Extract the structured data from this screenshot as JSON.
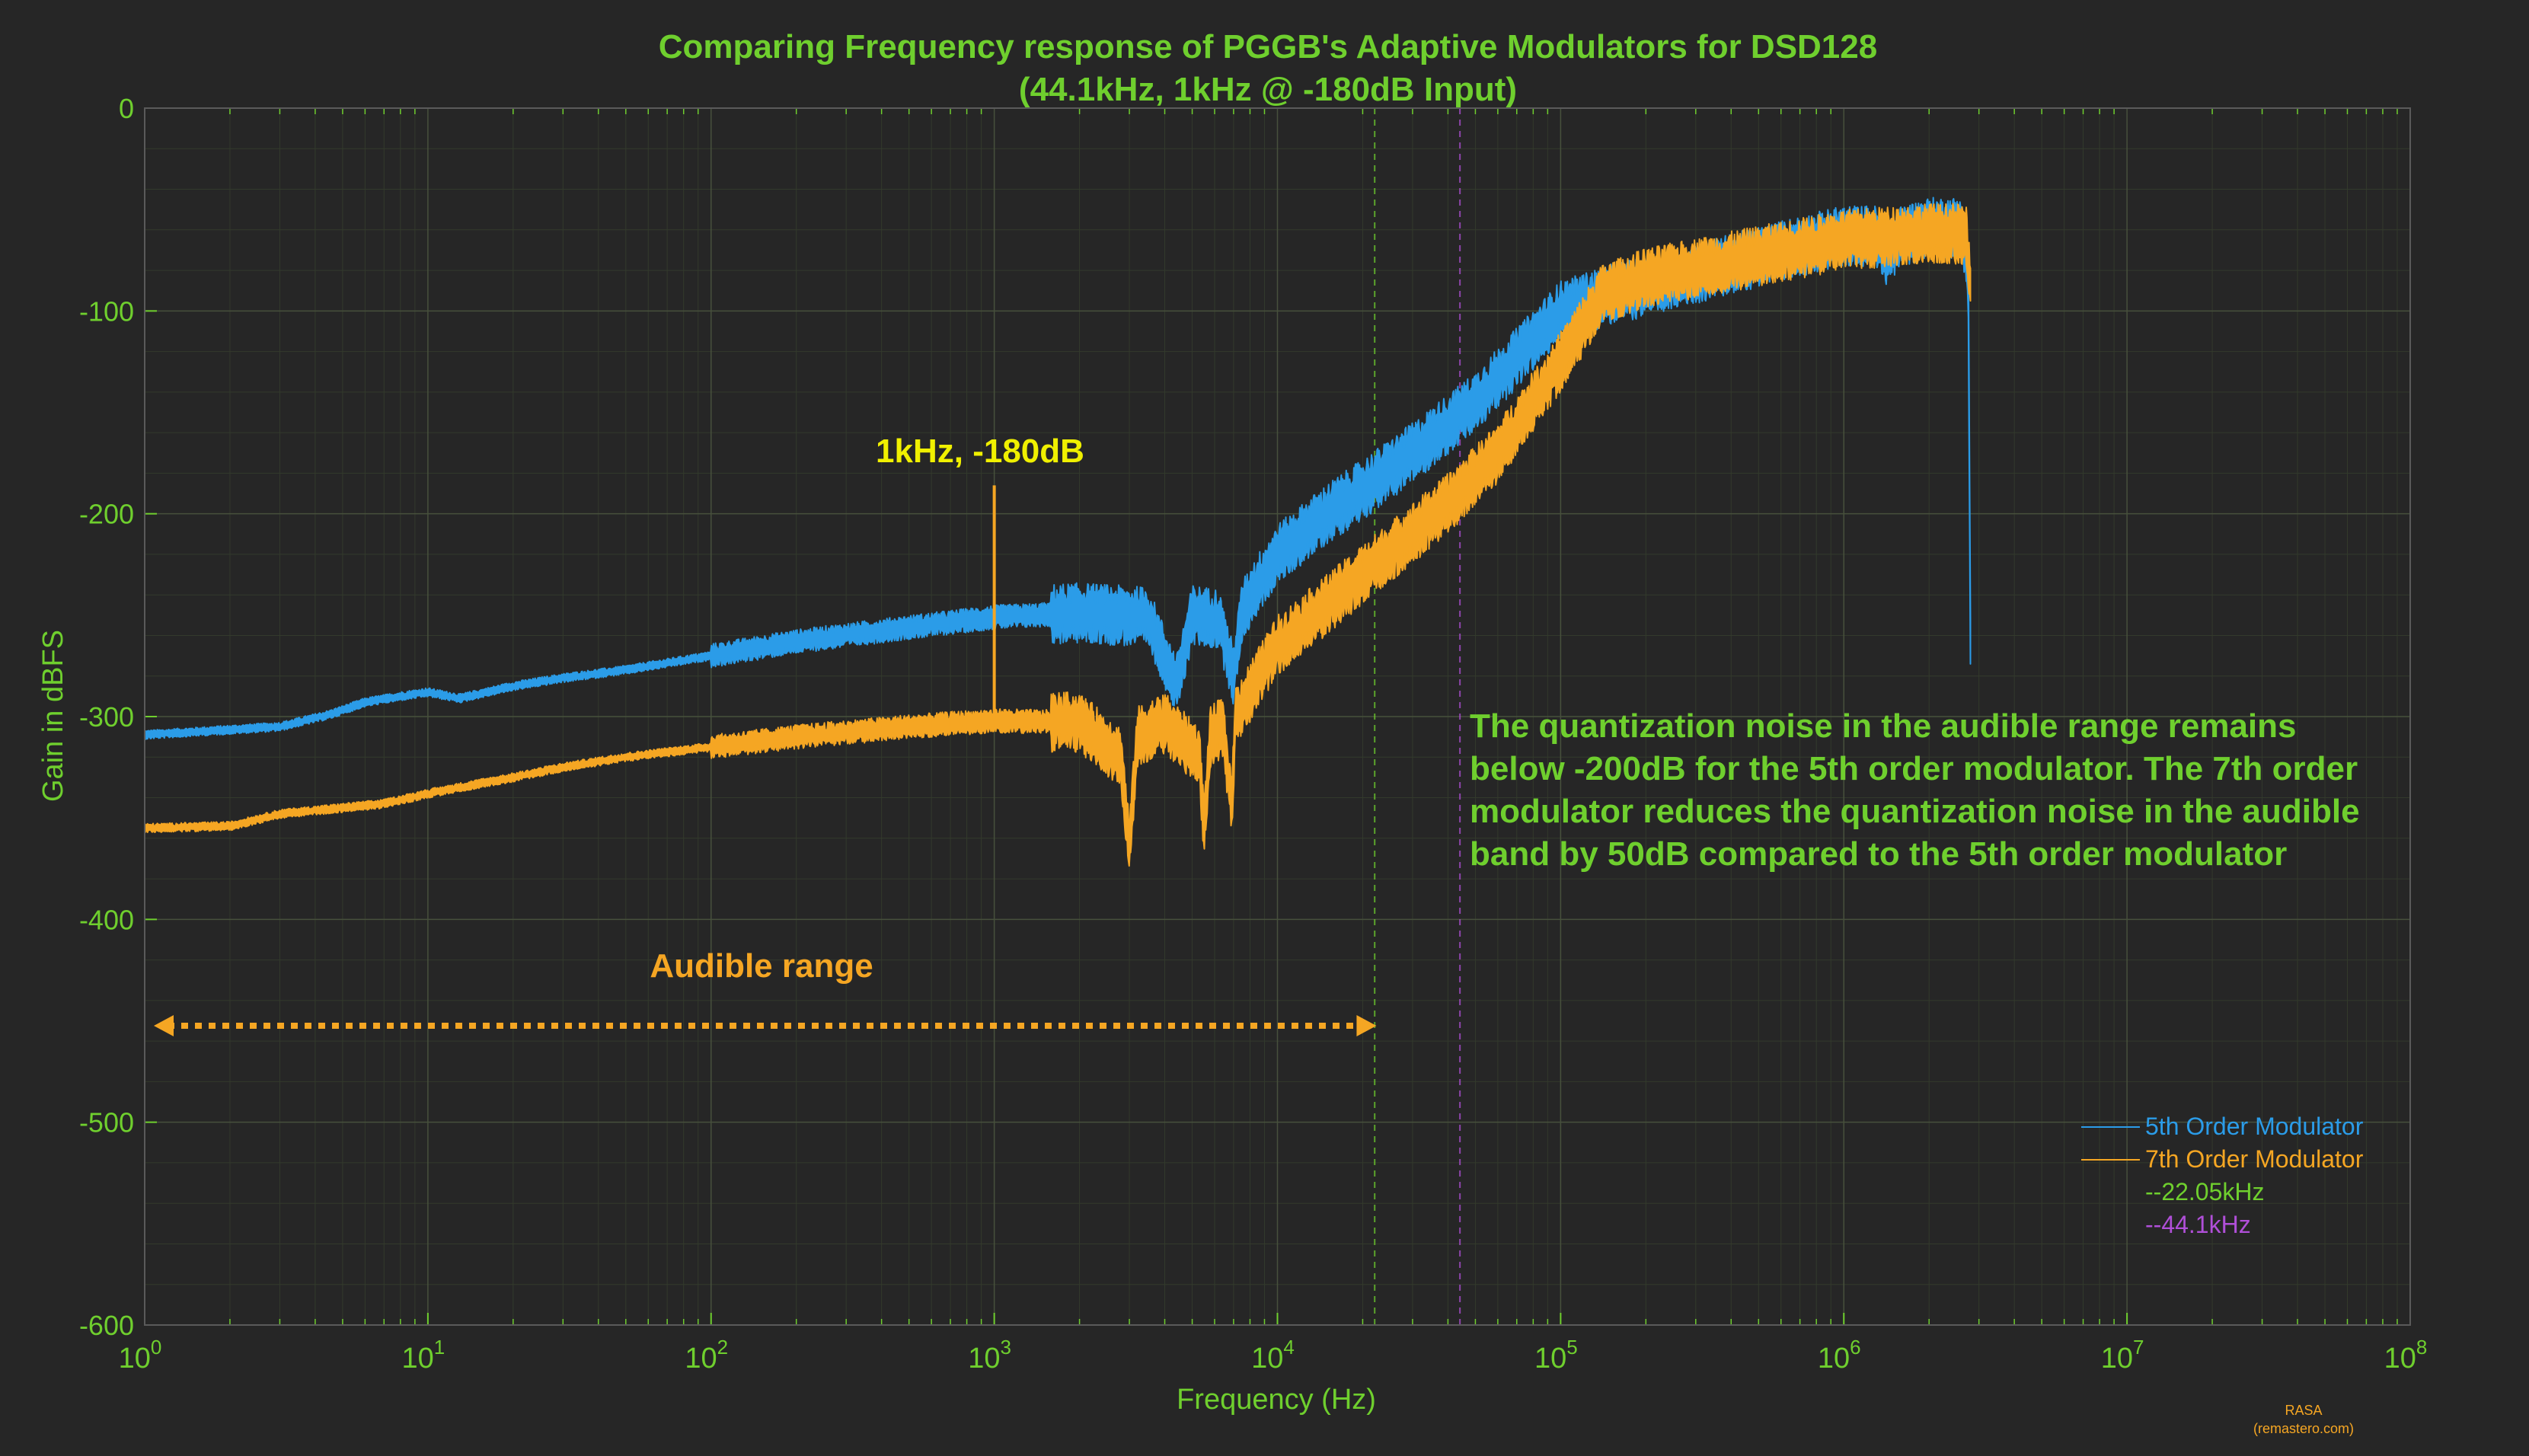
{
  "chart_data": {
    "type": "line",
    "title_lines": [
      "Comparing Frequency response of PGGB's Adaptive Modulators for  DSD128",
      "(44.1kHz, 1kHz @ -180dB Input)"
    ],
    "xlabel": "Frequency (Hz)",
    "ylabel": "Gain in dBFS",
    "x_scale": "log",
    "xlim": [
      1,
      100000000
    ],
    "ylim": [
      -600,
      0
    ],
    "x_ticks": [
      {
        "exp": "0",
        "value": 1
      },
      {
        "exp": "1",
        "value": 10
      },
      {
        "exp": "2",
        "value": 100
      },
      {
        "exp": "3",
        "value": 1000
      },
      {
        "exp": "4",
        "value": 10000
      },
      {
        "exp": "5",
        "value": 100000
      },
      {
        "exp": "6",
        "value": 1000000
      },
      {
        "exp": "7",
        "value": 10000000
      },
      {
        "exp": "8",
        "value": 100000000
      }
    ],
    "x_tick_base": "10",
    "y_ticks": [
      "0",
      "-100",
      "-200",
      "-300",
      "-400",
      "-500",
      "-600"
    ],
    "grid": true,
    "legend_position": "bottom-right",
    "series": [
      {
        "name": "5th Order Modulator",
        "color": "#2b9ce8",
        "x": [
          1,
          3,
          4.5,
          6,
          8,
          10,
          13,
          20,
          30,
          50,
          100,
          200,
          500,
          1000,
          2000,
          3500,
          4400,
          5000,
          6200,
          7000,
          7500,
          8500,
          10000,
          15000,
          20000,
          30000,
          50000,
          100000,
          150000,
          200000,
          400000,
          700000,
          1000000,
          1300000,
          1400000,
          1600000,
          2000000,
          2600000,
          2750000,
          2800000
        ],
        "y": [
          -309,
          -305,
          -299,
          -293,
          -290,
          -288,
          -291,
          -285,
          -281,
          -277,
          -270,
          -263,
          -256,
          -251,
          -249,
          -251,
          -285,
          -250,
          -252,
          -280,
          -248,
          -235,
          -220,
          -200,
          -188,
          -170,
          -145,
          -100,
          -92,
          -88,
          -77,
          -68,
          -63,
          -63,
          -73,
          -63,
          -59,
          -59,
          -80,
          -262
        ]
      },
      {
        "name": "7th Order Modulator",
        "color": "#f5a623",
        "x": [
          1,
          2,
          3,
          5,
          7,
          10,
          14,
          20,
          30,
          50,
          100,
          200,
          500,
          1000,
          2000,
          2800,
          3000,
          3200,
          4000,
          5300,
          5500,
          5800,
          6400,
          6900,
          7100,
          10000,
          20000,
          40000,
          60000,
          100000,
          140000,
          200000,
          500000,
          1000000,
          2000000,
          2700000,
          2800000
        ],
        "y": [
          -355,
          -354,
          -348,
          -345,
          -343,
          -338,
          -334,
          -330,
          -325,
          -320,
          -315,
          -310,
          -305,
          -302,
          -303,
          -320,
          -365,
          -310,
          -303,
          -320,
          -355,
          -310,
          -305,
          -345,
          -300,
          -265,
          -230,
          -195,
          -170,
          -125,
          -92,
          -84,
          -73,
          -65,
          -62,
          -62,
          -90
        ]
      }
    ],
    "spike": {
      "x": 1000,
      "y_top": -186,
      "y_base": -302
    },
    "markers": [
      {
        "label": "--22.05kHz",
        "x": 22050,
        "color": "#6fcf2e"
      },
      {
        "label": "--44.1kHz",
        "x": 44100,
        "color": "#b04fd8"
      }
    ],
    "annotations": {
      "spike_label": "1kHz, -180dB",
      "audible_range_label": "Audible range",
      "audible_range": [
        1,
        20000
      ],
      "note_lines": [
        "The quantization noise in the audible range remains",
        "below -200dB  for the 5th order modulator. The 7th order",
        "modulator reduces the quantization noise in the audible",
        "band by 50dB compared to the 5th order modulator"
      ]
    },
    "watermark": [
      "RASA",
      "(remastero.com)"
    ]
  },
  "colors": {
    "background": "#262626",
    "text_green": "#6fcf2e",
    "spike_label": "#f0f000",
    "orange": "#f5a623"
  }
}
